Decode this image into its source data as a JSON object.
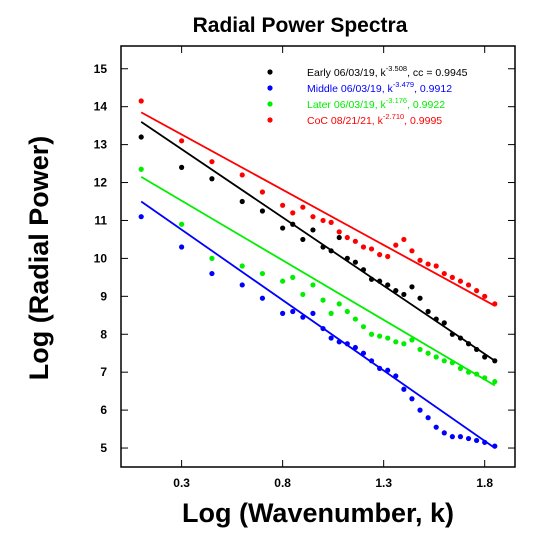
{
  "chart_data": {
    "type": "scatter",
    "title": "Radial Power Spectra",
    "xlabel": "Log (Wavenumber, k)",
    "ylabel": "Log (Radial Power)",
    "xlim": [
      0.0,
      1.95
    ],
    "ylim": [
      4.5,
      15.6
    ],
    "x_ticks": [
      "0.3",
      "0.8",
      "1.3",
      "1.8"
    ],
    "x_tick_values": [
      0.3,
      0.8,
      1.3,
      1.8
    ],
    "y_ticks": [
      "5",
      "6",
      "7",
      "8",
      "9",
      "10",
      "11",
      "12",
      "13",
      "14",
      "15"
    ],
    "y_tick_values": [
      5,
      6,
      7,
      8,
      9,
      10,
      11,
      12,
      13,
      14,
      15
    ],
    "grid": false,
    "legend_position": "top-right",
    "series": [
      {
        "name": "Early 06/03/19",
        "label_prefix": "Early 06/03/19, k",
        "label_exponent": "-3.508",
        "label_suffix": ",  cc = 0.9945",
        "color": "#000000",
        "fit": {
          "x": [
            0.1,
            1.85
          ],
          "y": [
            13.6,
            7.3
          ]
        },
        "x": [
          0.1,
          0.3,
          0.45,
          0.6,
          0.7,
          0.8,
          0.85,
          0.9,
          0.95,
          1.0,
          1.04,
          1.08,
          1.12,
          1.16,
          1.2,
          1.24,
          1.28,
          1.32,
          1.36,
          1.4,
          1.44,
          1.48,
          1.52,
          1.56,
          1.6,
          1.64,
          1.68,
          1.72,
          1.76,
          1.8,
          1.85
        ],
        "y": [
          13.2,
          12.4,
          12.1,
          11.5,
          11.25,
          10.8,
          10.9,
          10.5,
          10.75,
          10.3,
          10.2,
          10.55,
          10.0,
          9.9,
          9.7,
          9.45,
          9.4,
          9.3,
          9.15,
          9.05,
          9.25,
          8.95,
          8.6,
          8.4,
          8.3,
          8.0,
          7.9,
          7.75,
          7.6,
          7.4,
          7.3
        ]
      },
      {
        "name": "Middle 06/03/19",
        "label_prefix": "Middle 06/03/19, k",
        "label_exponent": "-3.479",
        "label_suffix": ",  0.9912",
        "color": "#0000ff",
        "fit": {
          "x": [
            0.1,
            1.85
          ],
          "y": [
            11.5,
            5.0
          ]
        },
        "x": [
          0.1,
          0.3,
          0.45,
          0.6,
          0.7,
          0.8,
          0.85,
          0.9,
          0.95,
          1.0,
          1.04,
          1.08,
          1.12,
          1.16,
          1.2,
          1.24,
          1.28,
          1.32,
          1.36,
          1.4,
          1.44,
          1.48,
          1.52,
          1.56,
          1.6,
          1.64,
          1.68,
          1.72,
          1.76,
          1.8,
          1.85
        ],
        "y": [
          11.1,
          10.3,
          9.6,
          9.3,
          8.95,
          8.55,
          8.6,
          8.45,
          8.55,
          8.15,
          7.9,
          7.8,
          7.75,
          7.65,
          7.5,
          7.3,
          7.1,
          7.05,
          6.9,
          6.55,
          6.3,
          6.0,
          5.8,
          5.55,
          5.4,
          5.3,
          5.3,
          5.25,
          5.2,
          5.15,
          5.05
        ]
      },
      {
        "name": "Later 06/03/19",
        "label_prefix": "Later 06/03/19, k",
        "label_exponent": "-3.176",
        "label_suffix": ",  0.9922",
        "color": "#00ee00",
        "fit": {
          "x": [
            0.1,
            1.85
          ],
          "y": [
            12.15,
            6.65
          ]
        },
        "x": [
          0.1,
          0.3,
          0.45,
          0.6,
          0.7,
          0.8,
          0.85,
          0.9,
          0.95,
          1.0,
          1.04,
          1.08,
          1.12,
          1.16,
          1.2,
          1.24,
          1.28,
          1.32,
          1.36,
          1.4,
          1.44,
          1.48,
          1.52,
          1.56,
          1.6,
          1.64,
          1.68,
          1.72,
          1.76,
          1.8,
          1.85
        ],
        "y": [
          12.35,
          10.9,
          10.0,
          9.8,
          9.6,
          9.4,
          9.5,
          9.05,
          9.3,
          8.9,
          8.55,
          8.8,
          8.6,
          8.4,
          8.2,
          8.0,
          7.95,
          7.9,
          7.8,
          7.75,
          7.85,
          7.6,
          7.5,
          7.4,
          7.3,
          7.25,
          7.1,
          7.0,
          6.95,
          6.85,
          6.75
        ]
      },
      {
        "name": "CoC 08/21/21",
        "label_prefix": "CoC 08/21/21, k",
        "label_exponent": "-2.710",
        "label_suffix": ",  0.9995",
        "color": "#ff0000",
        "fit": {
          "x": [
            0.1,
            1.85
          ],
          "y": [
            13.85,
            8.75
          ]
        },
        "x": [
          0.1,
          0.3,
          0.45,
          0.6,
          0.7,
          0.8,
          0.85,
          0.9,
          0.95,
          1.0,
          1.04,
          1.08,
          1.12,
          1.16,
          1.2,
          1.24,
          1.28,
          1.32,
          1.36,
          1.4,
          1.44,
          1.48,
          1.52,
          1.56,
          1.6,
          1.64,
          1.68,
          1.72,
          1.76,
          1.8,
          1.85
        ],
        "y": [
          14.15,
          13.1,
          12.55,
          12.2,
          11.75,
          11.4,
          11.2,
          11.35,
          11.1,
          11.0,
          10.95,
          10.7,
          10.55,
          10.45,
          10.3,
          10.25,
          10.1,
          10.05,
          10.35,
          10.5,
          10.2,
          9.95,
          9.85,
          9.8,
          9.6,
          9.5,
          9.4,
          9.3,
          9.15,
          9.0,
          8.8
        ]
      }
    ]
  }
}
